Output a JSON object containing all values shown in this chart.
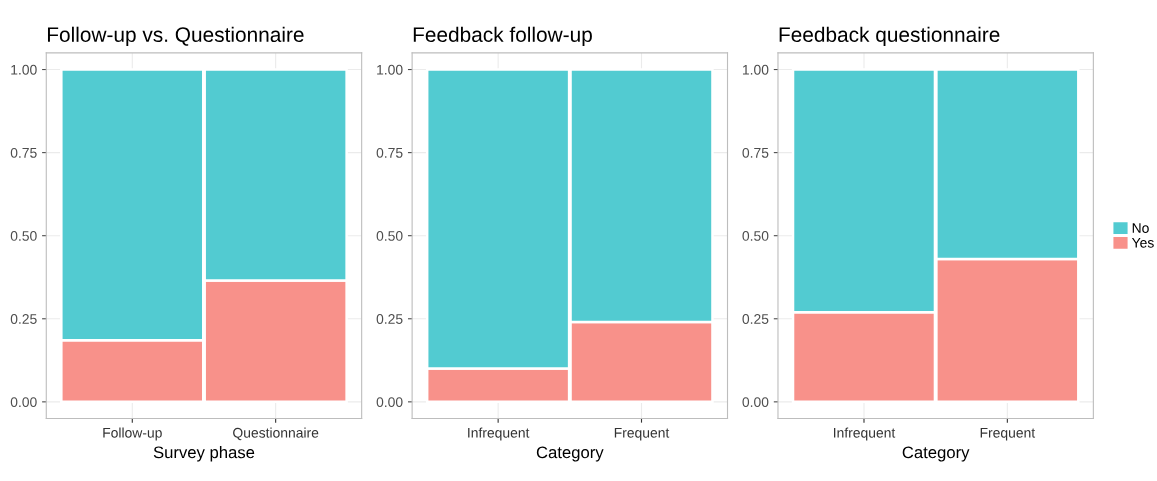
{
  "chart_data": [
    {
      "type": "bar",
      "stacked": true,
      "title": "Follow-up vs. Questionnaire",
      "xlabel": "Survey phase",
      "categories": [
        "Follow-up",
        "Questionnaire"
      ],
      "ylim": [
        -0.05,
        1.05
      ],
      "yticks": [
        {
          "value": 0,
          "label": "0.00"
        },
        {
          "value": 0.25,
          "label": "0.25"
        },
        {
          "value": 0.5,
          "label": "0.50"
        },
        {
          "value": 0.75,
          "label": "0.75"
        },
        {
          "value": 1,
          "label": "1.00"
        }
      ],
      "grid": true,
      "series": [
        {
          "color": "#f8918a",
          "values": [
            0.185,
            0.365
          ]
        },
        {
          "color": "#52cbd1",
          "values": [
            0.815,
            0.635
          ]
        }
      ]
    },
    {
      "type": "bar",
      "stacked": true,
      "title": "Feedback follow-up",
      "xlabel": "Category",
      "categories": [
        "Infrequent",
        "Frequent"
      ],
      "ylim": [
        -0.05,
        1.05
      ],
      "yticks": [
        {
          "value": 0,
          "label": "0.00"
        },
        {
          "value": 0.25,
          "label": "0.25"
        },
        {
          "value": 0.5,
          "label": "0.50"
        },
        {
          "value": 0.75,
          "label": "0.75"
        },
        {
          "value": 1,
          "label": "1.00"
        }
      ],
      "grid": true,
      "series": [
        {
          "color": "#f8918a",
          "values": [
            0.1,
            0.24
          ]
        },
        {
          "color": "#52cbd1",
          "values": [
            0.9,
            0.76
          ]
        }
      ]
    },
    {
      "type": "bar",
      "stacked": true,
      "title": "Feedback questionnaire",
      "xlabel": "Category",
      "categories": [
        "Infrequent",
        "Frequent"
      ],
      "ylim": [
        -0.05,
        1.05
      ],
      "yticks": [
        {
          "value": 0,
          "label": "0.00"
        },
        {
          "value": 0.25,
          "label": "0.25"
        },
        {
          "value": 0.5,
          "label": "0.50"
        },
        {
          "value": 0.75,
          "label": "0.75"
        },
        {
          "value": 1,
          "label": "1.00"
        }
      ],
      "grid": true,
      "legend": "right",
      "series": [
        {
          "name": "Yes",
          "color": "#f8918a",
          "values": [
            0.27,
            0.43
          ]
        },
        {
          "name": "No",
          "color": "#52cbd1",
          "values": [
            0.73,
            0.57
          ]
        }
      ]
    }
  ]
}
